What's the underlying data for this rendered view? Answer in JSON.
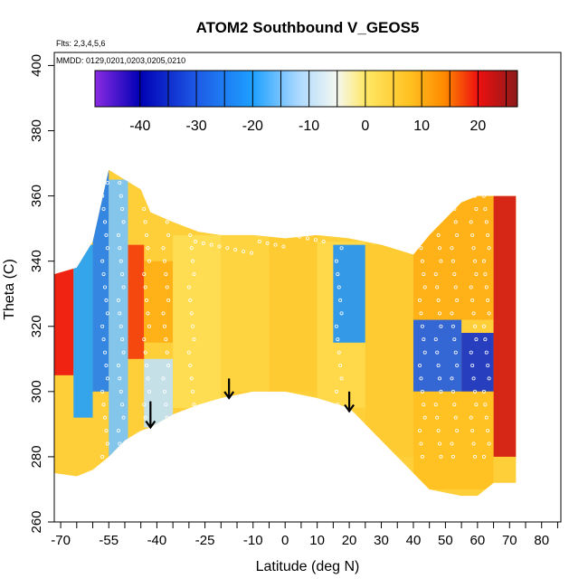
{
  "chart_data": {
    "type": "heatmap",
    "title": "ATOM2 Southbound V_GEOS5",
    "annotations": {
      "flights": "Flts: 2,3,4,5,6",
      "dates": "MMDD: 0129,0201,0203,0205,0210"
    },
    "xlabel": "Latitude (deg N)",
    "ylabel": "Theta (C)",
    "xlim": [
      -72,
      86
    ],
    "ylim": [
      260,
      404
    ],
    "x_ticks": [
      -70,
      -55,
      -40,
      -25,
      -10,
      0,
      10,
      20,
      30,
      40,
      50,
      60,
      70,
      80
    ],
    "x_tick_labels": [
      "-70",
      "-55",
      "-40",
      "-25",
      "-10",
      "0",
      "10",
      "20",
      "30",
      "40",
      "50",
      "60",
      "70",
      "80"
    ],
    "x_minor_ticks": [
      -65,
      -60,
      -50,
      -45,
      -35,
      -30,
      -20,
      -15,
      -5,
      5,
      15,
      25,
      35,
      45,
      55,
      65,
      75,
      85
    ],
    "y_ticks": [
      260,
      280,
      300,
      320,
      340,
      360,
      380,
      400
    ],
    "y_tick_labels": [
      "260",
      "280",
      "300",
      "320",
      "340",
      "360",
      "380",
      "400"
    ],
    "colorbar": {
      "placement": "top-inside",
      "range": [
        -48,
        27
      ],
      "ticks": [
        -40,
        -30,
        -20,
        -10,
        0,
        10,
        20
      ],
      "tick_labels": [
        "-40",
        "-30",
        "-20",
        "-10",
        "0",
        "10",
        "20"
      ],
      "stops": [
        {
          "value": -48,
          "color": "#8a2be2"
        },
        {
          "value": -40,
          "color": "#0000b4"
        },
        {
          "value": -30,
          "color": "#1e5ae6"
        },
        {
          "value": -20,
          "color": "#1ea0ff"
        },
        {
          "value": -12,
          "color": "#aad8ff"
        },
        {
          "value": -5,
          "color": "#f5f8f0"
        },
        {
          "value": 0,
          "color": "#ffe866"
        },
        {
          "value": 8,
          "color": "#ffc020"
        },
        {
          "value": 14,
          "color": "#ff8a00"
        },
        {
          "value": 20,
          "color": "#ee1010"
        },
        {
          "value": 27,
          "color": "#8c1a1a"
        }
      ]
    },
    "data_region": {
      "lat": [
        -72,
        -65,
        -60,
        -55,
        -50,
        -45,
        -42,
        -35,
        -27,
        -20,
        -10,
        0,
        10,
        20,
        30,
        40,
        45,
        55,
        60,
        65,
        72
      ],
      "theta_bottom": [
        275,
        274,
        276,
        280,
        285,
        288,
        289,
        293,
        296,
        298,
        300,
        300,
        298,
        295,
        285,
        275,
        270,
        268,
        268,
        272,
        272
      ],
      "theta_top": [
        336,
        338,
        346,
        368,
        365,
        362,
        355,
        352,
        349,
        348,
        348,
        347,
        348,
        347,
        345,
        342,
        348,
        358,
        360,
        360,
        360
      ]
    },
    "value_cells": [
      {
        "lat": [
          -72,
          -66
        ],
        "theta": [
          305,
          340
        ],
        "value": 20
      },
      {
        "lat": [
          -66,
          -60
        ],
        "theta": [
          292,
          345
        ],
        "value": -20
      },
      {
        "lat": [
          -60,
          -55
        ],
        "theta": [
          300,
          368
        ],
        "value": -25
      },
      {
        "lat": [
          -55,
          -49
        ],
        "theta": [
          278,
          365
        ],
        "value": -15
      },
      {
        "lat": [
          -49,
          -44
        ],
        "theta": [
          310,
          345
        ],
        "value": 18
      },
      {
        "lat": [
          -44,
          -35
        ],
        "theta": [
          315,
          340
        ],
        "value": 10
      },
      {
        "lat": [
          -44,
          -35
        ],
        "theta": [
          289,
          310
        ],
        "value": -10
      },
      {
        "lat": [
          -35,
          -20
        ],
        "theta": [
          295,
          348
        ],
        "value": 2
      },
      {
        "lat": [
          -20,
          -5
        ],
        "theta": [
          300,
          348
        ],
        "value": 4
      },
      {
        "lat": [
          -5,
          10
        ],
        "theta": [
          300,
          348
        ],
        "value": 6
      },
      {
        "lat": [
          10,
          25
        ],
        "theta": [
          295,
          346
        ],
        "value": 3
      },
      {
        "lat": [
          15,
          25
        ],
        "theta": [
          315,
          345
        ],
        "value": -22
      },
      {
        "lat": [
          25,
          40
        ],
        "theta": [
          280,
          345
        ],
        "value": 6
      },
      {
        "lat": [
          40,
          55
        ],
        "theta": [
          300,
          322
        ],
        "value": -30
      },
      {
        "lat": [
          55,
          65
        ],
        "theta": [
          300,
          318
        ],
        "value": -35
      },
      {
        "lat": [
          65,
          72
        ],
        "theta": [
          280,
          360
        ],
        "value": 22
      },
      {
        "lat": [
          40,
          65
        ],
        "theta": [
          270,
          300
        ],
        "value": 8
      },
      {
        "lat": [
          40,
          65
        ],
        "theta": [
          322,
          360
        ],
        "value": 10
      }
    ],
    "arrows": [
      {
        "lat": -42,
        "theta_from": 297,
        "theta_to": 289
      },
      {
        "lat": -17.5,
        "theta_from": 304,
        "theta_to": 298
      },
      {
        "lat": 20,
        "theta_from": 300,
        "theta_to": 294
      }
    ]
  }
}
